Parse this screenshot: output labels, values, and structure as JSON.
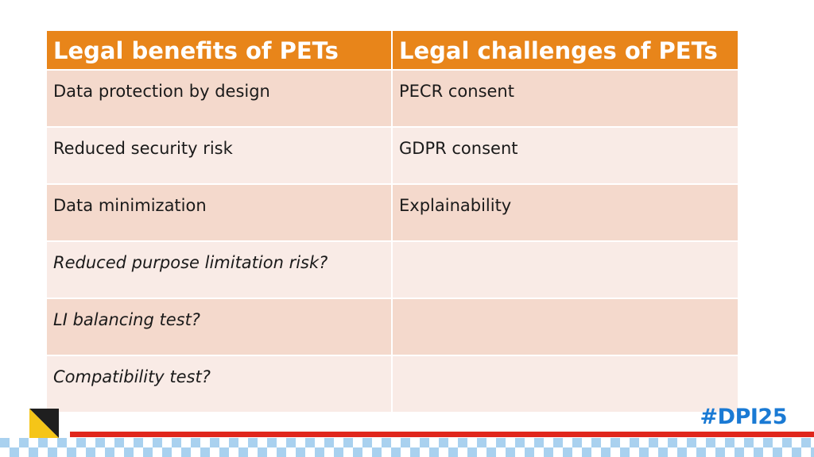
{
  "table": {
    "headers": [
      "Legal benefits of PETs",
      "Legal challenges of PETs"
    ],
    "rows": [
      [
        "Data protection by design",
        "PECR consent"
      ],
      [
        "Reduced security risk",
        "GDPR consent"
      ],
      [
        "Data minimization",
        "Explainability"
      ],
      [
        "Reduced purpose limitation risk?",
        ""
      ],
      [
        "LI balancing test?",
        ""
      ],
      [
        "Compatibility test?",
        ""
      ]
    ]
  },
  "footer": {
    "hashtag": "#DPI25"
  },
  "colors": {
    "header_bg": "#e8851a",
    "row_dark": "#f4d9cc",
    "row_light": "#f9ebe6",
    "accent_red": "#e0261c",
    "hashtag_blue": "#1a7ad4"
  }
}
